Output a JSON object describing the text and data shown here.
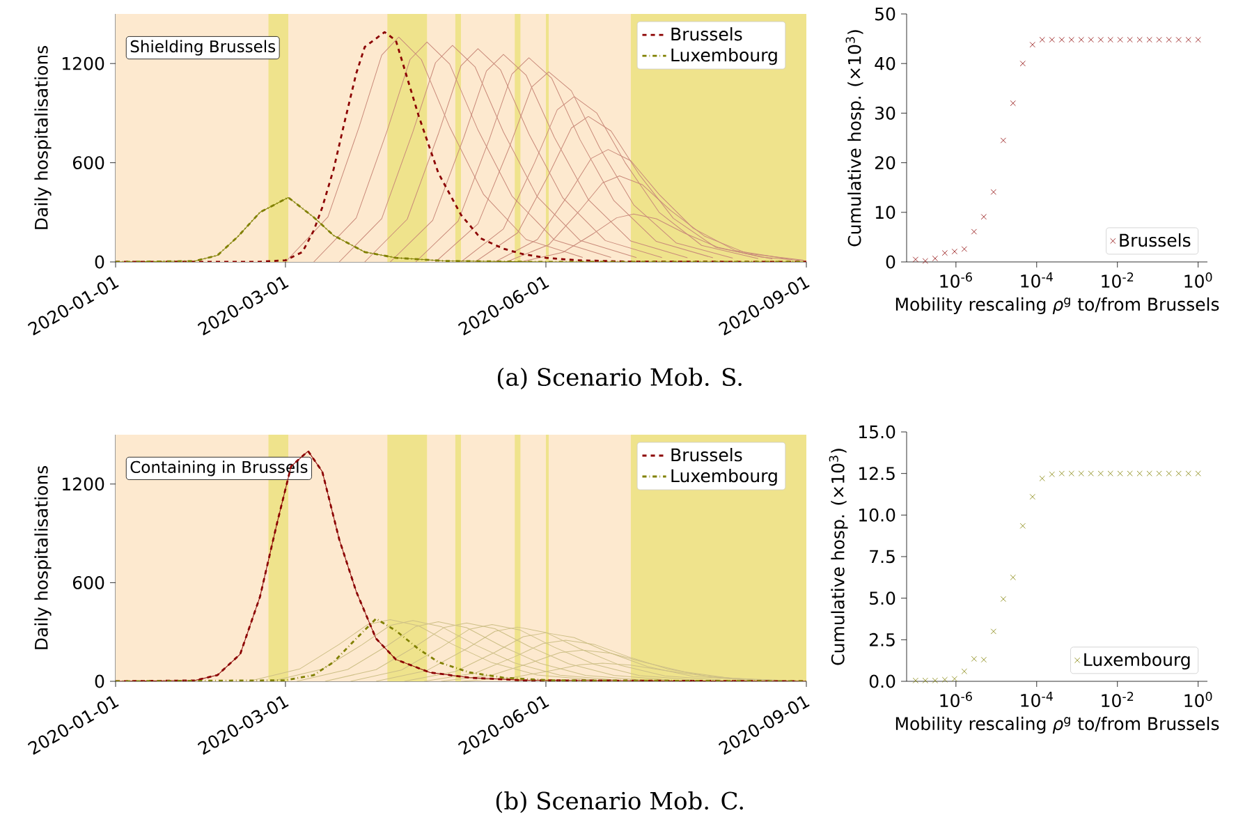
{
  "chart_data": [
    {
      "type": "line",
      "ylabel": "Daily hospitalisations",
      "xlim": [
        "2020-01-01",
        "2020-09-01"
      ],
      "xticks": [
        "2020-01-01",
        "2020-03-01",
        "2020-06-01",
        "2020-09-01"
      ],
      "ylim": [
        0,
        1500
      ],
      "yticks": [
        0,
        600,
        1200
      ],
      "legend": "top right",
      "annotations": [
        "Shielding Brussels",
        "(a) Scenario Mob. S."
      ],
      "bands": [
        {
          "axis": "x",
          "from": "2020-01-01",
          "to": "2020-09-01",
          "color": "#fde9cf"
        },
        {
          "axis": "x",
          "from": "2020-02-24",
          "to": "2020-03-02",
          "color": "#efe38c"
        },
        {
          "axis": "x",
          "from": "2020-04-06",
          "to": "2020-04-20",
          "color": "#efe38c"
        },
        {
          "axis": "x",
          "from": "2020-04-30",
          "to": "2020-05-02",
          "color": "#efe38c"
        },
        {
          "axis": "x",
          "from": "2020-05-21",
          "to": "2020-05-23",
          "color": "#efe38c"
        },
        {
          "axis": "x",
          "from": "2020-06-01",
          "to": "2020-06-02",
          "color": "#efe38c"
        },
        {
          "axis": "x",
          "from": "2020-07-01",
          "to": "2020-09-01",
          "color": "#efe38c"
        }
      ],
      "series": [
        {
          "color": "#c98a7a",
          "line_style": "solid",
          "x": [
            "2020-03-01",
            "2020-03-16",
            "2020-03-27",
            "2020-04-04",
            "2020-04-10",
            "2020-04-18",
            "2020-04-28",
            "2020-05-10",
            "2020-05-25",
            "2020-06-14"
          ],
          "values": [
            0,
            272,
            816,
            1251,
            1360,
            1224,
            816,
            408,
            136,
            27
          ]
        },
        {
          "color": "#c98a7a",
          "line_style": "solid",
          "x": [
            "2020-03-11",
            "2020-03-26",
            "2020-04-06",
            "2020-04-14",
            "2020-04-20",
            "2020-04-28",
            "2020-05-08",
            "2020-05-20",
            "2020-06-04",
            "2020-06-24"
          ],
          "values": [
            0,
            266,
            798,
            1224,
            1330,
            1197,
            798,
            399,
            133,
            27
          ]
        },
        {
          "color": "#c98a7a",
          "line_style": "solid",
          "x": [
            "2020-03-20",
            "2020-04-04",
            "2020-04-15",
            "2020-04-23",
            "2020-04-29",
            "2020-05-07",
            "2020-05-17",
            "2020-05-29",
            "2020-06-13",
            "2020-07-03"
          ],
          "values": [
            0,
            262,
            786,
            1205,
            1310,
            1179,
            786,
            393,
            131,
            26
          ]
        },
        {
          "color": "#c98a7a",
          "line_style": "solid",
          "x": [
            "2020-03-29",
            "2020-04-13",
            "2020-04-24",
            "2020-05-02",
            "2020-05-08",
            "2020-05-16",
            "2020-05-26",
            "2020-06-07",
            "2020-06-22",
            "2020-07-12"
          ],
          "values": [
            0,
            258,
            774,
            1187,
            1290,
            1161,
            774,
            387,
            129,
            26
          ]
        },
        {
          "color": "#c98a7a",
          "line_style": "solid",
          "x": [
            "2020-04-07",
            "2020-04-22",
            "2020-05-03",
            "2020-05-11",
            "2020-05-17",
            "2020-05-25",
            "2020-06-04",
            "2020-06-16",
            "2020-07-01",
            "2020-07-21"
          ],
          "values": [
            0,
            251,
            753,
            1155,
            1255,
            1130,
            753,
            377,
            126,
            25
          ]
        },
        {
          "color": "#c98a7a",
          "line_style": "solid",
          "x": [
            "2020-04-16",
            "2020-05-01",
            "2020-05-12",
            "2020-05-20",
            "2020-05-26",
            "2020-06-03",
            "2020-06-13",
            "2020-06-25",
            "2020-07-10",
            "2020-07-30"
          ],
          "values": [
            0,
            247,
            741,
            1136,
            1235,
            1112,
            741,
            371,
            124,
            25
          ]
        },
        {
          "color": "#c98a7a",
          "line_style": "solid",
          "x": [
            "2020-04-23",
            "2020-05-08",
            "2020-05-19",
            "2020-05-27",
            "2020-06-02",
            "2020-06-10",
            "2020-06-20",
            "2020-07-02",
            "2020-07-17",
            "2020-08-06"
          ],
          "values": [
            0,
            230,
            690,
            1058,
            1150,
            1035,
            690,
            345,
            115,
            23
          ]
        },
        {
          "color": "#c98a7a",
          "line_style": "solid",
          "x": [
            "2020-05-02",
            "2020-05-17",
            "2020-05-28",
            "2020-06-05",
            "2020-06-11",
            "2020-06-19",
            "2020-06-29",
            "2020-07-11",
            "2020-07-26",
            "2020-08-15"
          ],
          "values": [
            0,
            200,
            600,
            920,
            1000,
            900,
            600,
            300,
            100,
            20
          ]
        },
        {
          "color": "#c98a7a",
          "line_style": "solid",
          "x": [
            "2020-05-07",
            "2020-05-22",
            "2020-06-02",
            "2020-06-10",
            "2020-06-16",
            "2020-06-24",
            "2020-07-04",
            "2020-07-16",
            "2020-07-31",
            "2020-08-20"
          ],
          "values": [
            0,
            176,
            528,
            810,
            880,
            792,
            528,
            264,
            88,
            18
          ]
        },
        {
          "color": "#c98a7a",
          "line_style": "solid",
          "x": [
            "2020-05-14",
            "2020-05-29",
            "2020-06-09",
            "2020-06-17",
            "2020-06-23",
            "2020-07-01",
            "2020-07-11",
            "2020-07-23",
            "2020-08-07",
            "2020-08-27"
          ],
          "values": [
            0,
            136,
            408,
            626,
            680,
            612,
            408,
            204,
            68,
            14
          ]
        },
        {
          "color": "#c98a7a",
          "line_style": "solid",
          "x": [
            "2020-05-18",
            "2020-06-02",
            "2020-06-13",
            "2020-06-21",
            "2020-06-27",
            "2020-07-05",
            "2020-07-15",
            "2020-07-27",
            "2020-08-11",
            "2020-08-31"
          ],
          "values": [
            0,
            104,
            312,
            478,
            520,
            468,
            312,
            156,
            52,
            10
          ]
        },
        {
          "color": "#c98a7a",
          "line_style": "solid",
          "x": [
            "2020-05-23",
            "2020-06-07",
            "2020-06-18",
            "2020-06-26",
            "2020-07-02",
            "2020-07-10",
            "2020-07-20",
            "2020-08-01",
            "2020-08-16",
            "2020-09-01"
          ],
          "values": [
            0,
            58,
            174,
            267,
            290,
            261,
            174,
            87,
            29,
            6
          ]
        },
        {
          "color": "#808000",
          "line_style": "solid",
          "x": [
            "2020-01-01",
            "2020-01-29",
            "2020-02-06",
            "2020-02-13",
            "2020-02-21",
            "2020-03-02",
            "2020-03-11",
            "2020-03-18",
            "2020-03-29",
            "2020-04-09",
            "2020-04-26",
            "2020-06-01",
            "2020-09-01"
          ],
          "values": [
            0,
            5,
            40,
            150,
            300,
            390,
            270,
            160,
            60,
            25,
            6,
            0,
            0
          ]
        },
        {
          "name": "Brussels",
          "color": "#8b0000",
          "line_style": "dashed",
          "x": [
            "2020-01-01",
            "2020-02-20",
            "2020-03-01",
            "2020-03-07",
            "2020-03-11",
            "2020-03-14",
            "2020-03-18",
            "2020-03-22",
            "2020-03-26",
            "2020-03-29",
            "2020-04-05",
            "2020-04-09",
            "2020-04-17",
            "2020-04-24",
            "2020-05-02",
            "2020-05-09",
            "2020-05-17",
            "2020-05-24",
            "2020-06-01",
            "2020-06-12",
            "2020-06-30",
            "2020-09-01"
          ],
          "values": [
            0,
            0,
            10,
            60,
            190,
            330,
            560,
            855,
            1140,
            1300,
            1390,
            1340,
            886,
            538,
            285,
            142,
            80,
            47,
            25,
            10,
            2,
            0
          ]
        },
        {
          "name": "Luxembourg",
          "color": "#808000",
          "line_style": "dashdot",
          "x": [
            "2020-01-01",
            "2020-01-29",
            "2020-02-06",
            "2020-02-13",
            "2020-02-21",
            "2020-03-02",
            "2020-03-11",
            "2020-03-18",
            "2020-03-29",
            "2020-04-09",
            "2020-04-26",
            "2020-06-01",
            "2020-09-01"
          ],
          "values": [
            0,
            5,
            40,
            150,
            300,
            390,
            270,
            160,
            60,
            25,
            6,
            0,
            0
          ]
        }
      ]
    },
    {
      "type": "scatter",
      "log": "x",
      "marker": "cross",
      "legend": "bottom right",
      "xlabel": "Mobility rescaling *ρ*$^{g}$ to/from Brussels",
      "ylabel": "Cumulative hosp. (×10$^{3}$)",
      "xlim": [
        6e-08,
        1.7
      ],
      "xticks": [
        {
          "value": 1e-06,
          "label": "10$^{-6}$"
        },
        {
          "value": 0.0001,
          "label": "10$^{-4}$"
        },
        {
          "value": 0.01,
          "label": "10$^{-2}$"
        },
        {
          "value": 1,
          "label": "10$^{0}$"
        }
      ],
      "ylim": [
        0,
        50
      ],
      "yticks": [
        0,
        10,
        20,
        30,
        40,
        50
      ],
      "x": [
        1e-07,
        1.74e-07,
        3.04e-07,
        5.3e-07,
        9.24e-07,
        1.61e-06,
        2.81e-06,
        4.89e-06,
        8.53e-06,
        1.49e-05,
        2.59e-05,
        4.52e-05,
        7.88e-05,
        0.000137,
        0.000239,
        0.000418,
        0.000728,
        0.00127,
        0.00221,
        0.00386,
        0.00672,
        0.0117,
        0.0204,
        0.0356,
        0.0621,
        0.108,
        0.189,
        0.329,
        0.574,
        1
      ],
      "series": [
        {
          "name": "Brussels",
          "color": "#8b0000",
          "values": [
            0.5,
            0.2,
            0.7,
            1.8,
            2.1,
            2.6,
            6.1,
            9.1,
            14.1,
            24.5,
            32,
            40,
            43.8,
            44.8,
            44.8,
            44.8,
            44.8,
            44.8,
            44.8,
            44.8,
            44.8,
            44.8,
            44.8,
            44.8,
            44.8,
            44.8,
            44.8,
            44.8,
            44.8,
            44.8
          ]
        }
      ]
    },
    {
      "type": "line",
      "ylabel": "Daily hospitalisations",
      "xlim": [
        "2020-01-01",
        "2020-09-01"
      ],
      "xticks": [
        "2020-01-01",
        "2020-03-01",
        "2020-06-01",
        "2020-09-01"
      ],
      "ylim": [
        0,
        1500
      ],
      "yticks": [
        0,
        600,
        1200
      ],
      "legend": "top right",
      "annotations": [
        "Containing in Brussels",
        "(b) Scenario Mob. C."
      ],
      "bands": [
        {
          "axis": "x",
          "from": "2020-01-01",
          "to": "2020-09-01",
          "color": "#fde9cf"
        },
        {
          "axis": "x",
          "from": "2020-02-24",
          "to": "2020-03-02",
          "color": "#efe38c"
        },
        {
          "axis": "x",
          "from": "2020-04-06",
          "to": "2020-04-20",
          "color": "#efe38c"
        },
        {
          "axis": "x",
          "from": "2020-04-30",
          "to": "2020-05-02",
          "color": "#efe38c"
        },
        {
          "axis": "x",
          "from": "2020-05-21",
          "to": "2020-05-23",
          "color": "#efe38c"
        },
        {
          "axis": "x",
          "from": "2020-06-01",
          "to": "2020-06-02",
          "color": "#efe38c"
        },
        {
          "axis": "x",
          "from": "2020-07-01",
          "to": "2020-09-01",
          "color": "#efe38c"
        }
      ],
      "series": [
        {
          "color": "#cdbf86",
          "line_style": "solid",
          "x": [
            "2020-02-17",
            "2020-03-06",
            "2020-03-20",
            "2020-03-30",
            "2020-04-07",
            "2020-04-17",
            "2020-04-29",
            "2020-05-13",
            "2020-05-29",
            "2020-06-18"
          ],
          "values": [
            0,
            75,
            225,
            345,
            375,
            338,
            225,
            113,
            38,
            8
          ]
        },
        {
          "color": "#cdbf86",
          "line_style": "solid",
          "x": [
            "2020-02-25",
            "2020-03-14",
            "2020-03-28",
            "2020-04-07",
            "2020-04-15",
            "2020-04-25",
            "2020-05-07",
            "2020-05-21",
            "2020-06-06",
            "2020-06-26"
          ],
          "values": [
            0,
            74,
            222,
            340,
            370,
            333,
            222,
            111,
            37,
            7
          ]
        },
        {
          "color": "#cdbf86",
          "line_style": "solid",
          "x": [
            "2020-03-05",
            "2020-03-23",
            "2020-04-06",
            "2020-04-16",
            "2020-04-24",
            "2020-05-04",
            "2020-05-16",
            "2020-05-30",
            "2020-06-15",
            "2020-07-05"
          ],
          "values": [
            0,
            72,
            217,
            333,
            362,
            326,
            217,
            109,
            36,
            7
          ]
        },
        {
          "color": "#cdbf86",
          "line_style": "solid",
          "x": [
            "2020-03-15",
            "2020-04-02",
            "2020-04-16",
            "2020-04-26",
            "2020-05-04",
            "2020-05-14",
            "2020-05-26",
            "2020-06-09",
            "2020-06-25",
            "2020-07-15"
          ],
          "values": [
            0,
            71,
            213,
            327,
            355,
            320,
            213,
            107,
            36,
            7
          ]
        },
        {
          "color": "#cdbf86",
          "line_style": "solid",
          "x": [
            "2020-03-24",
            "2020-04-11",
            "2020-04-25",
            "2020-05-05",
            "2020-05-13",
            "2020-05-23",
            "2020-06-04",
            "2020-06-18",
            "2020-07-04",
            "2020-07-24"
          ],
          "values": [
            0,
            69,
            207,
            317,
            345,
            311,
            207,
            104,
            35,
            7
          ]
        },
        {
          "color": "#cdbf86",
          "line_style": "solid",
          "x": [
            "2020-04-02",
            "2020-04-20",
            "2020-05-04",
            "2020-05-14",
            "2020-05-22",
            "2020-06-01",
            "2020-06-13",
            "2020-06-27",
            "2020-07-13",
            "2020-08-02"
          ],
          "values": [
            0,
            66,
            198,
            304,
            330,
            297,
            198,
            99,
            33,
            7
          ]
        },
        {
          "color": "#cdbf86",
          "line_style": "solid",
          "x": [
            "2020-04-12",
            "2020-04-30",
            "2020-05-14",
            "2020-05-24",
            "2020-06-01",
            "2020-06-11",
            "2020-06-23",
            "2020-07-07",
            "2020-07-23",
            "2020-08-12"
          ],
          "values": [
            0,
            59,
            177,
            271,
            295,
            266,
            177,
            89,
            30,
            6
          ]
        },
        {
          "color": "#cdbf86",
          "line_style": "solid",
          "x": [
            "2020-04-19",
            "2020-05-07",
            "2020-05-21",
            "2020-05-31",
            "2020-06-08",
            "2020-06-18",
            "2020-06-30",
            "2020-07-14",
            "2020-07-30",
            "2020-08-19"
          ],
          "values": [
            0,
            50,
            150,
            230,
            250,
            225,
            150,
            75,
            25,
            5
          ]
        },
        {
          "color": "#cdbf86",
          "line_style": "solid",
          "x": [
            "2020-04-25",
            "2020-05-13",
            "2020-05-27",
            "2020-06-06",
            "2020-06-14",
            "2020-06-24",
            "2020-07-06",
            "2020-07-20",
            "2020-08-05",
            "2020-08-25"
          ],
          "values": [
            0,
            38,
            114,
            175,
            190,
            171,
            114,
            57,
            19,
            4
          ]
        },
        {
          "color": "#cdbf86",
          "line_style": "solid",
          "x": [
            "2020-05-02",
            "2020-05-20",
            "2020-06-03",
            "2020-06-13",
            "2020-06-21",
            "2020-07-01",
            "2020-07-13",
            "2020-07-27",
            "2020-08-12",
            "2020-09-01"
          ],
          "values": [
            0,
            22,
            66,
            101,
            110,
            99,
            66,
            33,
            11,
            2
          ]
        },
        {
          "color": "#8b0000",
          "line_style": "solid",
          "x": [
            "2020-01-01",
            "2020-01-29",
            "2020-02-06",
            "2020-02-14",
            "2020-02-21",
            "2020-02-27",
            "2020-03-03",
            "2020-03-09",
            "2020-03-14",
            "2020-03-20",
            "2020-03-26",
            "2020-04-02",
            "2020-04-09",
            "2020-04-21",
            "2020-05-05",
            "2020-05-24",
            "2020-09-01"
          ],
          "values": [
            0,
            5,
            38,
            165,
            514,
            960,
            1308,
            1400,
            1276,
            863,
            546,
            260,
            133,
            54,
            22,
            6,
            0
          ]
        },
        {
          "name": "Brussels",
          "color": "#8b0000",
          "line_style": "dashed",
          "x": [
            "2020-01-01",
            "2020-01-29",
            "2020-02-06",
            "2020-02-14",
            "2020-02-21",
            "2020-02-27",
            "2020-03-03",
            "2020-03-09",
            "2020-03-14",
            "2020-03-20",
            "2020-03-26",
            "2020-04-02",
            "2020-04-09",
            "2020-04-21",
            "2020-05-05",
            "2020-05-24",
            "2020-09-01"
          ],
          "values": [
            0,
            5,
            38,
            165,
            514,
            960,
            1308,
            1400,
            1276,
            863,
            546,
            260,
            133,
            54,
            22,
            6,
            0
          ]
        },
        {
          "name": "Luxembourg",
          "color": "#808000",
          "line_style": "dashdot",
          "x": [
            "2020-01-01",
            "2020-03-01",
            "2020-03-11",
            "2020-03-18",
            "2020-03-26",
            "2020-04-02",
            "2020-04-09",
            "2020-04-17",
            "2020-04-24",
            "2020-05-05",
            "2020-05-17",
            "2020-06-02",
            "2020-09-01"
          ],
          "values": [
            0,
            6,
            38,
            117,
            260,
            381,
            308,
            197,
            117,
            54,
            22,
            6,
            0
          ]
        }
      ]
    },
    {
      "type": "scatter",
      "log": "x",
      "marker": "cross",
      "legend": "bottom right",
      "xlabel": "Mobility rescaling *ρ*$^{g}$ to/from Brussels",
      "ylabel": "Cumulative hosp. (×10$^{3}$)",
      "xlim": [
        6e-08,
        1.7
      ],
      "xticks": [
        {
          "value": 1e-06,
          "label": "10$^{-6}$"
        },
        {
          "value": 0.0001,
          "label": "10$^{-4}$"
        },
        {
          "value": 0.01,
          "label": "10$^{-2}$"
        },
        {
          "value": 1,
          "label": "10$^{0}$"
        }
      ],
      "ylim": [
        0,
        15
      ],
      "yticks": [
        {
          "value": 0,
          "label": "0.0"
        },
        {
          "value": 2.5,
          "label": "2.5"
        },
        {
          "value": 5,
          "label": "5.0"
        },
        {
          "value": 7.5,
          "label": "7.5"
        },
        {
          "value": 10,
          "label": "10.0"
        },
        {
          "value": 12.5,
          "label": "12.5"
        },
        {
          "value": 15,
          "label": "15.0"
        }
      ],
      "x": [
        1e-07,
        1.74e-07,
        3.04e-07,
        5.3e-07,
        9.24e-07,
        1.61e-06,
        2.81e-06,
        4.89e-06,
        8.53e-06,
        1.49e-05,
        2.59e-05,
        4.52e-05,
        7.88e-05,
        0.000137,
        0.000239,
        0.000418,
        0.000728,
        0.00127,
        0.00221,
        0.00386,
        0.00672,
        0.0117,
        0.0204,
        0.0356,
        0.0621,
        0.108,
        0.189,
        0.329,
        0.574,
        1
      ],
      "series": [
        {
          "name": "Luxembourg",
          "color": "#808000",
          "values": [
            0.05,
            0.05,
            0.05,
            0.1,
            0.15,
            0.6,
            1.35,
            1.3,
            3.0,
            4.95,
            6.25,
            9.35,
            11.1,
            12.2,
            12.45,
            12.5,
            12.5,
            12.5,
            12.5,
            12.5,
            12.5,
            12.5,
            12.5,
            12.5,
            12.5,
            12.5,
            12.5,
            12.5,
            12.5,
            12.5
          ]
        }
      ]
    }
  ]
}
